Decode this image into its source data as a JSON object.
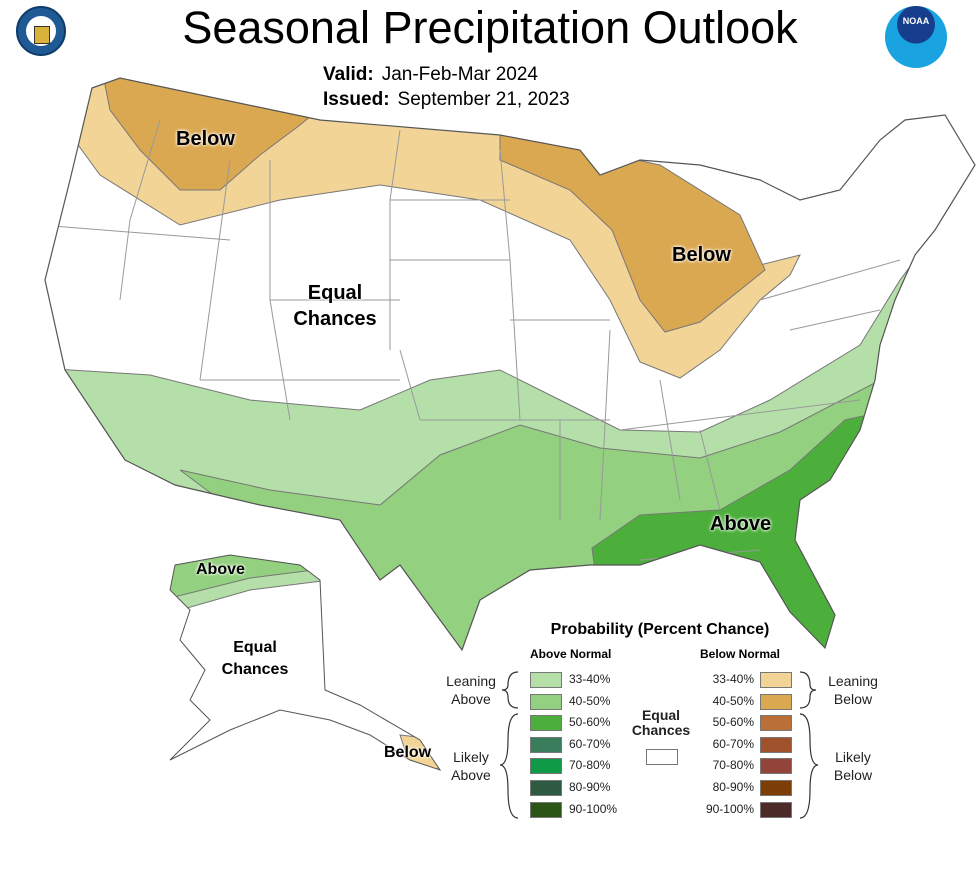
{
  "header": {
    "title": "Seasonal Precipitation Outlook",
    "valid_label": "Valid:",
    "valid_value": "Jan-Feb-Mar 2024",
    "issued_label": "Issued:",
    "issued_value": "September 21, 2023",
    "logo_left": "Department of Commerce, United States of America",
    "logo_right": "NOAA"
  },
  "map_labels": {
    "below_nw": "Below",
    "below_lakes": "Below",
    "equal_conus_1": "Equal",
    "equal_conus_2": "Chances",
    "above_se": "Above",
    "above_ak": "Above",
    "equal_ak_1": "Equal",
    "equal_ak_2": "Chances",
    "below_ak": "Below"
  },
  "legend": {
    "title": "Probability (Percent Chance)",
    "above_header": "Above Normal",
    "below_header": "Below Normal",
    "leaning_above": [
      "Leaning",
      "Above"
    ],
    "likely_above": [
      "Likely",
      "Above"
    ],
    "leaning_below": [
      "Leaning",
      "Below"
    ],
    "likely_below": [
      "Likely",
      "Below"
    ],
    "equal": [
      "Equal",
      "Chances"
    ],
    "above": [
      {
        "range": "33-40%",
        "color": "#b5dfa9"
      },
      {
        "range": "40-50%",
        "color": "#93d07f"
      },
      {
        "range": "50-60%",
        "color": "#4caf3b"
      },
      {
        "range": "60-70%",
        "color": "#3a7d5c"
      },
      {
        "range": "70-80%",
        "color": "#0f9a48"
      },
      {
        "range": "80-90%",
        "color": "#2d5a40"
      },
      {
        "range": "90-100%",
        "color": "#2b5517"
      }
    ],
    "below": [
      {
        "range": "33-40%",
        "color": "#f2d596"
      },
      {
        "range": "40-50%",
        "color": "#dba852"
      },
      {
        "range": "50-60%",
        "color": "#b96f36"
      },
      {
        "range": "60-70%",
        "color": "#a0522d"
      },
      {
        "range": "70-80%",
        "color": "#93443a"
      },
      {
        "range": "80-90%",
        "color": "#7c3e06"
      },
      {
        "range": "90-100%",
        "color": "#4b2a28"
      }
    ],
    "equal_color": "#ffffff"
  }
}
